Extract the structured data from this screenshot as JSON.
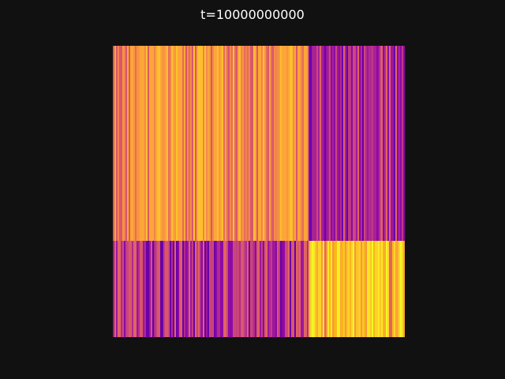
{
  "chart_data": {
    "type": "heatmap",
    "title": "t=10000000000",
    "xlabel": "",
    "ylabel": "",
    "grid": false,
    "colormap": "plasma",
    "background": "#111111",
    "blocks": [
      {
        "rows": "top",
        "cols": "left",
        "dominant_color": "#f48a4b"
      },
      {
        "rows": "top",
        "cols": "right",
        "dominant_color": "#b12a90"
      },
      {
        "rows": "bottom",
        "cols": "left",
        "dominant_color": "#c13f80"
      },
      {
        "rows": "bottom",
        "cols": "right",
        "dominant_color": "#fdd32a"
      }
    ],
    "palettes": {
      "top_left": [
        "#f48a4b",
        "#f89540",
        "#fca636",
        "#fdbf2f",
        "#e66c5c",
        "#d8576b",
        "#fca636",
        "#f1844b"
      ],
      "top_right": [
        "#b12a90",
        "#9c179e",
        "#8b0aa5",
        "#cc4778",
        "#6a00a8",
        "#a72197",
        "#bd3786",
        "#e16462"
      ],
      "bottom_left": [
        "#c13f80",
        "#cc4778",
        "#b12a90",
        "#d8576b",
        "#9c179e",
        "#e16462",
        "#8b0aa5",
        "#6a00a8"
      ],
      "bottom_right": [
        "#fdd32a",
        "#f0f921",
        "#fca636",
        "#fdc527",
        "#e16462",
        "#fbb61a",
        "#fde725",
        "#f89540"
      ]
    }
  }
}
